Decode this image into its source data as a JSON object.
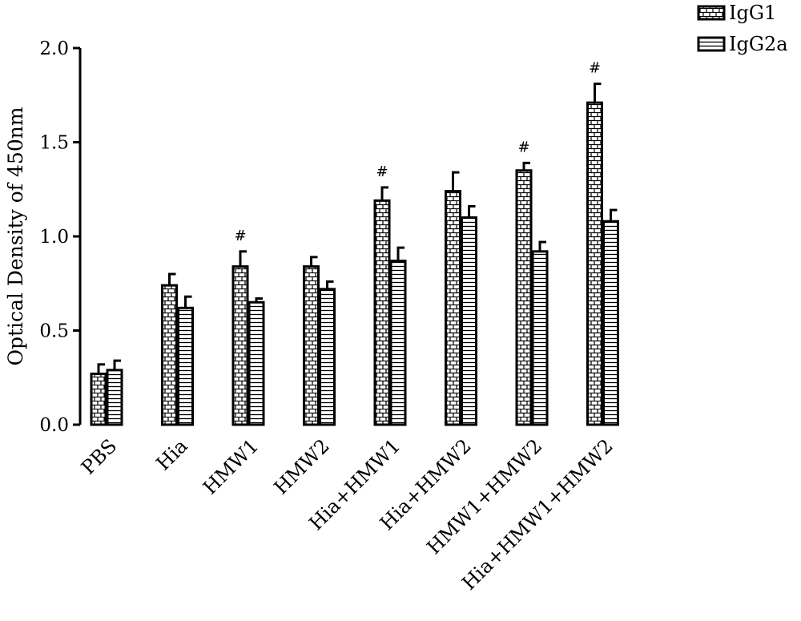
{
  "chart_data": {
    "type": "bar",
    "title": "",
    "xlabel": "",
    "ylabel": "Optical Density of 450nm",
    "ylim": [
      0,
      2.0
    ],
    "yticks": [
      0.0,
      0.5,
      1.0,
      1.5,
      2.0
    ],
    "ytick_labels": [
      "0.0",
      "0.5",
      "1.0",
      "1.5",
      "2.0"
    ],
    "categories": [
      "PBS",
      "Hia",
      "HMW1",
      "HMW2",
      "Hia+HMW1",
      "Hia+HMW2",
      "HMW1+HMW2",
      "Hia+HMW1+HMW2"
    ],
    "series": [
      {
        "name": "IgG1",
        "pattern": "brick",
        "values": [
          0.27,
          0.74,
          0.84,
          0.84,
          1.19,
          1.24,
          1.35,
          1.71
        ],
        "errors": [
          0.05,
          0.06,
          0.08,
          0.05,
          0.07,
          0.1,
          0.04,
          0.1
        ]
      },
      {
        "name": "IgG2a",
        "pattern": "horizontal-lines",
        "values": [
          0.29,
          0.62,
          0.65,
          0.72,
          0.87,
          1.1,
          0.92,
          1.08
        ],
        "errors": [
          0.05,
          0.06,
          0.02,
          0.04,
          0.07,
          0.06,
          0.05,
          0.06
        ]
      }
    ],
    "significance_markers": [
      {
        "category": "HMW1",
        "series": "IgG1",
        "symbol": "#"
      },
      {
        "category": "Hia+HMW1",
        "series": "IgG1",
        "symbol": "#"
      },
      {
        "category": "HMW1+HMW2",
        "series": "IgG1",
        "symbol": "#"
      },
      {
        "category": "Hia+HMW1+HMW2",
        "series": "IgG1",
        "symbol": "#"
      }
    ],
    "legend_position": "top-right",
    "grid": false,
    "colors": {
      "bar_outline": "#000000",
      "bar_fill": "#ffffff"
    }
  }
}
